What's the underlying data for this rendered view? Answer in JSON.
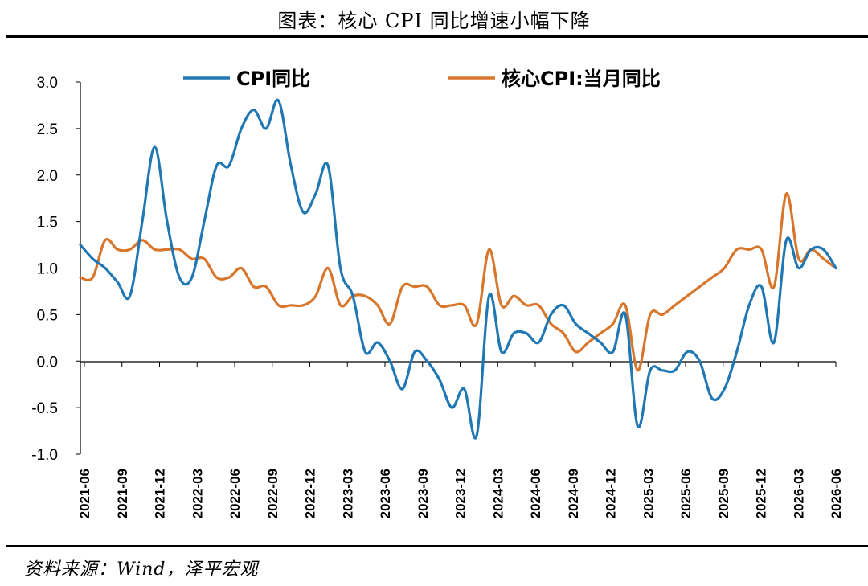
{
  "title": "图表：核心 CPI 同比增速小幅下降",
  "source": "资料来源：Wind，泽平宏观",
  "chart_data": {
    "type": "line",
    "ylim": [
      -1.0,
      3.0
    ],
    "yticks": [
      "3.0",
      "2.5",
      "2.0",
      "1.5",
      "1.0",
      "0.5",
      "0.0",
      "-0.5",
      "-1.0"
    ],
    "ytick_values": [
      3.0,
      2.5,
      2.0,
      1.5,
      1.0,
      0.5,
      0.0,
      -0.5,
      -1.0
    ],
    "xticks": [
      "2021-06",
      "2021-09",
      "2021-12",
      "2022-03",
      "2022-06",
      "2022-09",
      "2022-12",
      "2023-03",
      "2023-06",
      "2023-09",
      "2023-12",
      "2024-03",
      "2024-06",
      "2024-09",
      "2024-12",
      "2025-03",
      "2025-06",
      "2025-09",
      "2025-12",
      "2026-03",
      "2026-06"
    ],
    "grid": false,
    "legend_position": "top",
    "series": [
      {
        "name": "CPI同比",
        "color": "#1f77b4",
        "values": [
          1.25,
          1.1,
          1.0,
          0.85,
          0.7,
          1.5,
          2.3,
          1.5,
          0.9,
          0.9,
          1.5,
          2.1,
          2.1,
          2.5,
          2.7,
          2.5,
          2.8,
          2.1,
          1.6,
          1.8,
          2.1,
          1.0,
          0.7,
          0.1,
          0.2,
          0.0,
          -0.3,
          0.1,
          0.0,
          -0.2,
          -0.5,
          -0.3,
          -0.8,
          0.7,
          0.1,
          0.3,
          0.3,
          0.2,
          0.5,
          0.6,
          0.4,
          0.3,
          0.2,
          0.1,
          0.5,
          -0.7,
          -0.1,
          -0.1,
          -0.1,
          0.1,
          0.0,
          -0.4,
          -0.3,
          0.1,
          0.6,
          0.8,
          0.2,
          1.3,
          1.0,
          1.2,
          1.2,
          1.0
        ]
      },
      {
        "name": "核心CPI:当月同比",
        "color": "#d8762c",
        "values": [
          0.9,
          0.9,
          1.3,
          1.2,
          1.2,
          1.3,
          1.2,
          1.2,
          1.2,
          1.1,
          1.1,
          0.9,
          0.9,
          1.0,
          0.8,
          0.8,
          0.6,
          0.6,
          0.6,
          0.7,
          1.0,
          0.6,
          0.7,
          0.7,
          0.6,
          0.4,
          0.8,
          0.8,
          0.8,
          0.6,
          0.6,
          0.6,
          0.4,
          1.2,
          0.6,
          0.7,
          0.6,
          0.6,
          0.4,
          0.3,
          0.1,
          0.2,
          0.3,
          0.4,
          0.6,
          -0.1,
          0.5,
          0.5,
          0.6,
          0.7,
          0.8,
          0.9,
          1.0,
          1.2,
          1.2,
          1.2,
          0.8,
          1.8,
          1.1,
          1.2,
          1.1,
          1.0
        ]
      }
    ]
  }
}
